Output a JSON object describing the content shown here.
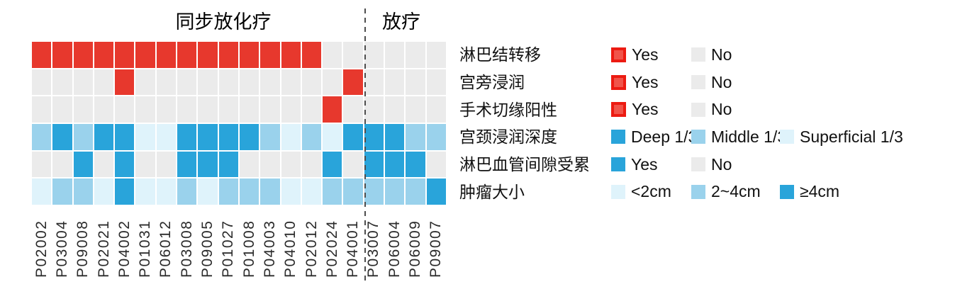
{
  "header": {
    "group1_label": "同步放化疗",
    "group2_label": "放疗"
  },
  "colors": {
    "red": "#E7382D",
    "grey": "#EBEBEB",
    "dark_blue": "#29A4DA",
    "medium_blue": "#9AD2EC",
    "pale_blue": "#DFF3FB",
    "legend_red_border": "#EC1B12",
    "legend_red_fill": "#F1544A",
    "divider": "#4D4D4D"
  },
  "chart_data": {
    "type": "heatmap",
    "title": "",
    "column_groups": [
      {
        "label": "同步放化疗",
        "start": 0,
        "end": 16
      },
      {
        "label": "放疗",
        "start": 16,
        "end": 20
      }
    ],
    "group_split_index": 16,
    "columns": [
      "P02002",
      "P03004",
      "P09008",
      "P02021",
      "P04002",
      "P01031",
      "P06012",
      "P03008",
      "P09005",
      "P01027",
      "P01008",
      "P04003",
      "P04010",
      "P02012",
      "P02024",
      "P04001",
      "P03007",
      "P06004",
      "P06009",
      "P09007"
    ],
    "rows": [
      {
        "label": "淋巴结转移",
        "value_colors": {
          "Yes": "red",
          "No": "grey"
        },
        "values": [
          "Yes",
          "Yes",
          "Yes",
          "Yes",
          "Yes",
          "Yes",
          "Yes",
          "Yes",
          "Yes",
          "Yes",
          "Yes",
          "Yes",
          "Yes",
          "Yes",
          "No",
          "No",
          "No",
          "No",
          "No",
          "No"
        ]
      },
      {
        "label": "宫旁浸润",
        "value_colors": {
          "Yes": "red",
          "No": "grey"
        },
        "values": [
          "No",
          "No",
          "No",
          "No",
          "Yes",
          "No",
          "No",
          "No",
          "No",
          "No",
          "No",
          "No",
          "No",
          "No",
          "No",
          "Yes",
          "No",
          "No",
          "No",
          "No"
        ]
      },
      {
        "label": "手术切缘阳性",
        "value_colors": {
          "Yes": "red",
          "No": "grey"
        },
        "values": [
          "No",
          "No",
          "No",
          "No",
          "No",
          "No",
          "No",
          "No",
          "No",
          "No",
          "No",
          "No",
          "No",
          "No",
          "Yes",
          "No",
          "No",
          "No",
          "No",
          "No"
        ]
      },
      {
        "label": "宫颈浸润深度",
        "value_colors": {
          "Deep 1/3": "dark_blue",
          "Middle 1/3": "medium_blue",
          "Superficial 1/3": "pale_blue"
        },
        "values": [
          "Middle 1/3",
          "Deep 1/3",
          "Middle 1/3",
          "Deep 1/3",
          "Deep 1/3",
          "Superficial 1/3",
          "Superficial 1/3",
          "Deep 1/3",
          "Deep 1/3",
          "Deep 1/3",
          "Deep 1/3",
          "Middle 1/3",
          "Superficial 1/3",
          "Middle 1/3",
          "Superficial 1/3",
          "Deep 1/3",
          "Deep 1/3",
          "Deep 1/3",
          "Middle 1/3",
          "Middle 1/3"
        ]
      },
      {
        "label": "淋巴血管间隙受累",
        "value_colors": {
          "Yes": "dark_blue",
          "No": "grey"
        },
        "values": [
          "No",
          "No",
          "Yes",
          "No",
          "Yes",
          "No",
          "No",
          "Yes",
          "Yes",
          "Yes",
          "No",
          "No",
          "No",
          "No",
          "Yes",
          "No",
          "Yes",
          "Yes",
          "Yes",
          "No"
        ]
      },
      {
        "label": "肿瘤大小",
        "value_colors": {
          "<2cm": "pale_blue",
          "2~4cm": "medium_blue",
          "≥4cm": "dark_blue"
        },
        "values": [
          "<2cm",
          "2~4cm",
          "2~4cm",
          "<2cm",
          "≥4cm",
          "<2cm",
          "<2cm",
          "2~4cm",
          "<2cm",
          "2~4cm",
          "2~4cm",
          "2~4cm",
          "<2cm",
          "<2cm",
          "2~4cm",
          "2~4cm",
          "2~4cm",
          "2~4cm",
          "2~4cm",
          "≥4cm"
        ]
      }
    ],
    "legend": [
      {
        "items": [
          {
            "label": "Yes",
            "swatch": "red_outlined"
          },
          {
            "label": "No",
            "swatch": "grey"
          }
        ]
      },
      {
        "items": [
          {
            "label": "Yes",
            "swatch": "red_outlined"
          },
          {
            "label": "No",
            "swatch": "grey"
          }
        ]
      },
      {
        "items": [
          {
            "label": "Yes",
            "swatch": "red_outlined"
          },
          {
            "label": "No",
            "swatch": "grey"
          }
        ]
      },
      {
        "items": [
          {
            "label": "Deep 1/3",
            "swatch": "dark_blue"
          },
          {
            "label": "Middle 1/3",
            "swatch": "medium_blue"
          },
          {
            "label": "Superficial 1/3",
            "swatch": "pale_blue"
          }
        ]
      },
      {
        "items": [
          {
            "label": "Yes",
            "swatch": "dark_blue"
          },
          {
            "label": "No",
            "swatch": "grey"
          }
        ]
      },
      {
        "items": [
          {
            "label": "<2cm",
            "swatch": "pale_blue"
          },
          {
            "label": "2~4cm",
            "swatch": "medium_blue"
          },
          {
            "label": "≥4cm",
            "swatch": "dark_blue"
          }
        ]
      }
    ],
    "legend_position": "right",
    "grid": false
  }
}
